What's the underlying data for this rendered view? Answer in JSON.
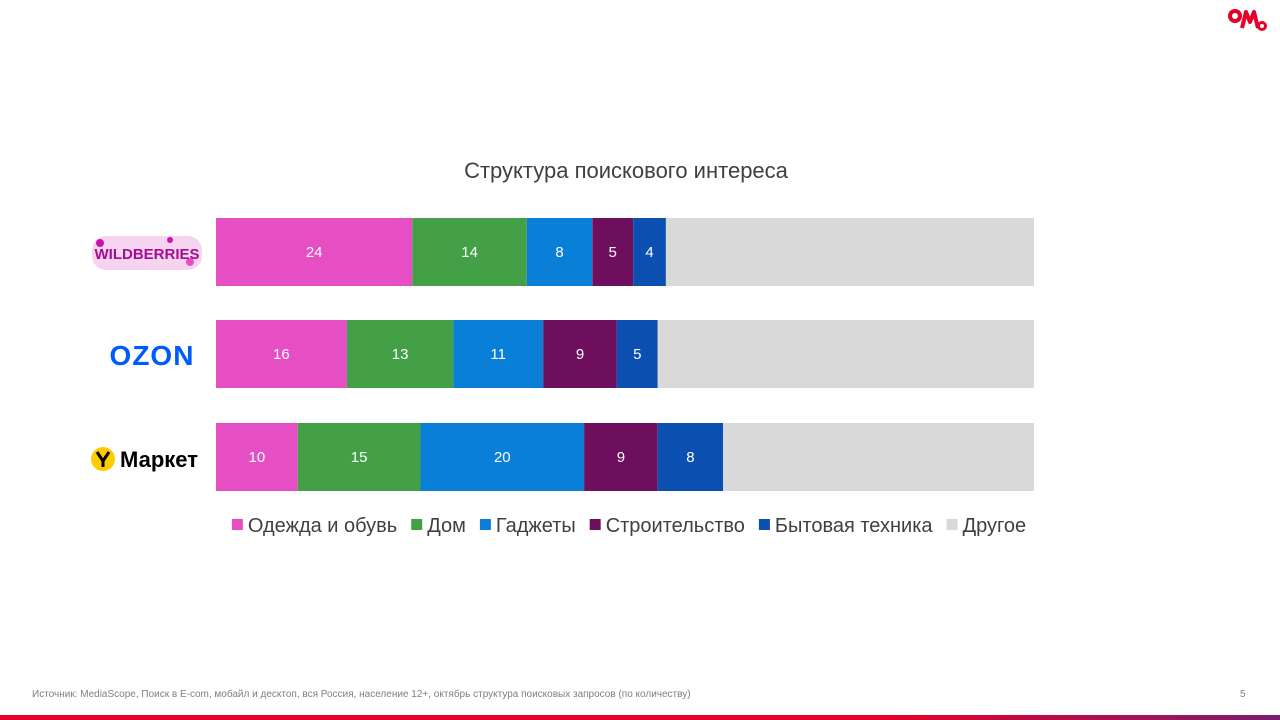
{
  "slide": {
    "footnote": "Источник: MediaScope, Поиск в E-com, мобайл и десктоп, вся Россия, население 12+, октябрь структура поисковых запросов (по количеству)",
    "page_number": "5",
    "brand_logo_text": "ОМД",
    "accent_color": "#e4002b"
  },
  "marketplaces": [
    {
      "name": "WILDBERRIES",
      "logo": "wildberries-logo"
    },
    {
      "name": "OZON",
      "logo": "ozon-logo"
    },
    {
      "name": "Маркет",
      "logo": "yandex-market-logo"
    }
  ],
  "chart_data": {
    "type": "bar",
    "orientation": "horizontal",
    "stacked": true,
    "title": "Структура поискового интереса",
    "categories": [
      "WILDBERRIES",
      "OZON",
      "Маркет"
    ],
    "xlim": [
      0,
      100
    ],
    "grid": false,
    "legend_position": "bottom",
    "series": [
      {
        "name": "Одежда и обувь",
        "color": "#e64fc4",
        "values": [
          24,
          16,
          10
        ]
      },
      {
        "name": "Дом",
        "color": "#43a047",
        "values": [
          14,
          13,
          15
        ]
      },
      {
        "name": "Гаджеты",
        "color": "#0a7fd8",
        "values": [
          8,
          11,
          20
        ]
      },
      {
        "name": "Строительство",
        "color": "#6e0f5d",
        "values": [
          5,
          9,
          9
        ]
      },
      {
        "name": "Бытовая техника",
        "color": "#0b4fb0",
        "values": [
          4,
          5,
          8
        ]
      },
      {
        "name": "Другое",
        "color": "#d9d9d9",
        "values": [
          45,
          46,
          38
        ],
        "show_labels": false
      }
    ]
  }
}
